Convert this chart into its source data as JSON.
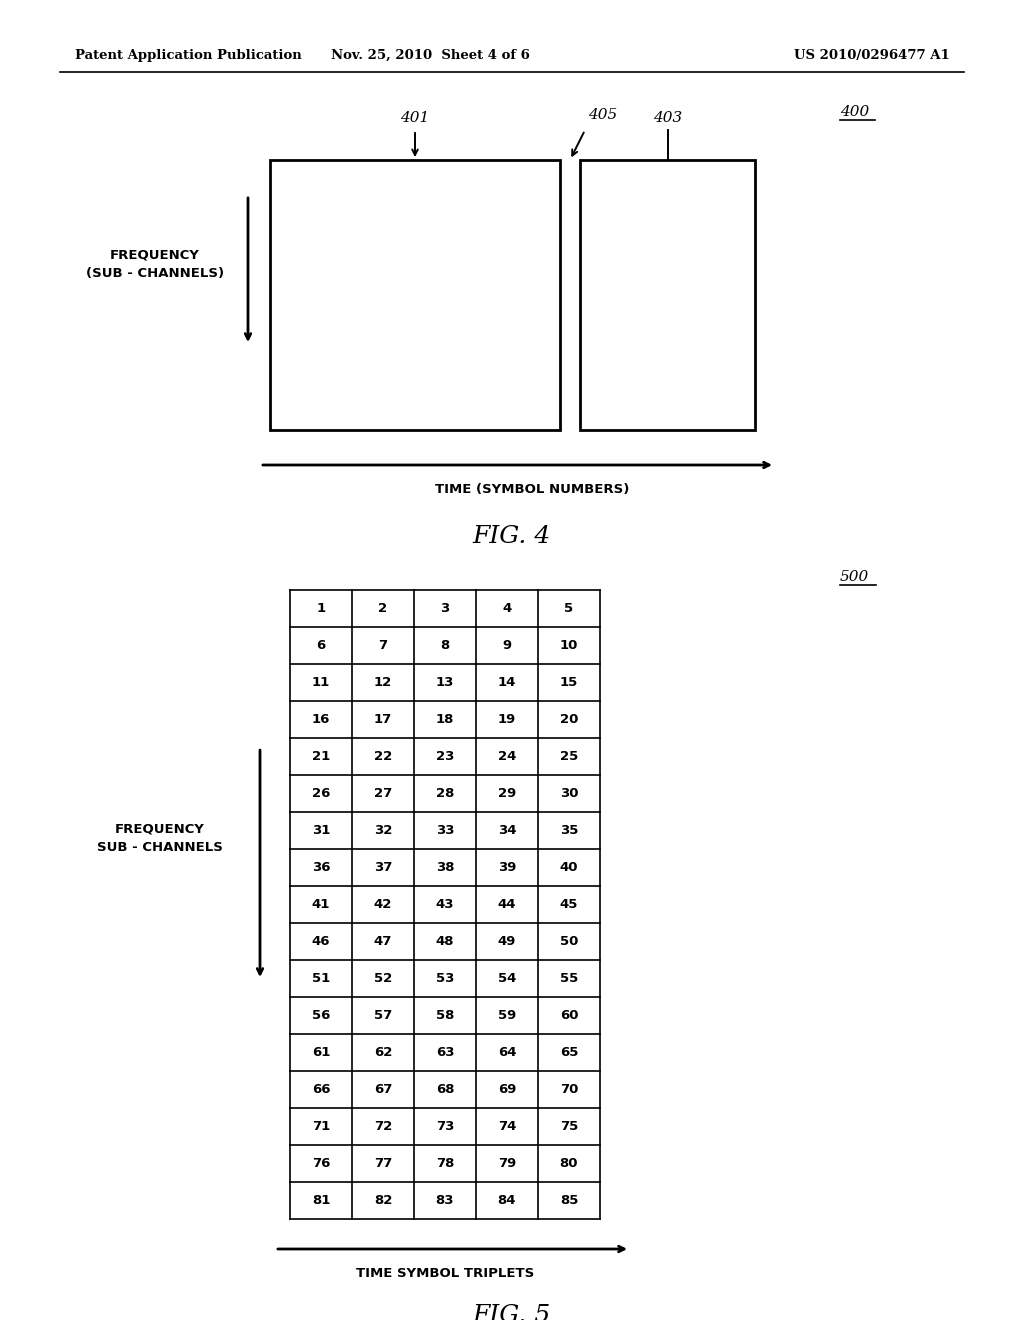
{
  "header_left": "Patent Application Publication",
  "header_mid": "Nov. 25, 2010  Sheet 4 of 6",
  "header_right": "US 2010/0296477 A1",
  "fig4_label": "400",
  "fig4_box1_label": "401",
  "fig4_box2_label": "403",
  "fig4_gap_label": "405",
  "fig4_xlabel": "TIME (SYMBOL NUMBERS)",
  "fig4_ylabel_line1": "FREQUENCY",
  "fig4_ylabel_line2": "(SUB - CHANNELS)",
  "fig4_caption": "FIG. 4",
  "fig5_label": "500",
  "fig5_ylabel_line1": "FREQUENCY",
  "fig5_ylabel_line2": "SUB - CHANNELS",
  "fig5_xlabel": "TIME SYMBOL TRIPLETS",
  "fig5_caption": "FIG. 5",
  "fig5_grid": [
    [
      1,
      2,
      3,
      4,
      5
    ],
    [
      6,
      7,
      8,
      9,
      10
    ],
    [
      11,
      12,
      13,
      14,
      15
    ],
    [
      16,
      17,
      18,
      19,
      20
    ],
    [
      21,
      22,
      23,
      24,
      25
    ],
    [
      26,
      27,
      28,
      29,
      30
    ],
    [
      31,
      32,
      33,
      34,
      35
    ],
    [
      36,
      37,
      38,
      39,
      40
    ],
    [
      41,
      42,
      43,
      44,
      45
    ],
    [
      46,
      47,
      48,
      49,
      50
    ],
    [
      51,
      52,
      53,
      54,
      55
    ],
    [
      56,
      57,
      58,
      59,
      60
    ],
    [
      61,
      62,
      63,
      64,
      65
    ],
    [
      66,
      67,
      68,
      69,
      70
    ],
    [
      71,
      72,
      73,
      74,
      75
    ],
    [
      76,
      77,
      78,
      79,
      80
    ],
    [
      81,
      82,
      83,
      84,
      85
    ]
  ],
  "background_color": "#ffffff",
  "text_color": "#000000",
  "line_color": "#000000"
}
